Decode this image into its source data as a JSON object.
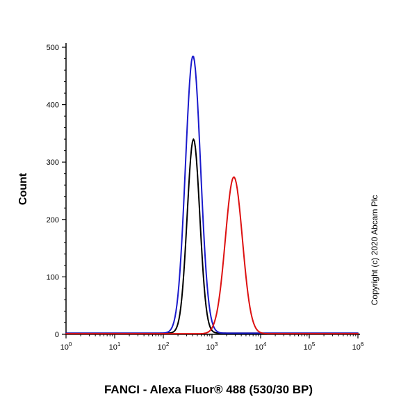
{
  "page": {
    "background": "#ffffff"
  },
  "title": "FANCI - Alexa Fluor® 488 (530/30 BP)",
  "copyright": "Copyright (c) 2020 Abcam Plc",
  "chart_data": {
    "type": "line",
    "subtype": "flow-cytometry-histogram",
    "title": "FANCI - Alexa Fluor® 488 (530/30 BP)",
    "xlabel": "",
    "ylabel": "Count",
    "x_scale": "log10",
    "xlim": [
      1,
      1000000
    ],
    "ylim": [
      0,
      500
    ],
    "grid": false,
    "legend": "none",
    "y_ticks": [
      0,
      100,
      200,
      300,
      400,
      500
    ],
    "y_minor_tick_step": 20,
    "x_tick_base": "10",
    "x_tick_exponents": [
      0,
      1,
      2,
      3,
      4,
      5,
      6
    ],
    "series": [
      {
        "name": "control-black",
        "color": "#000000",
        "peak_count": 338,
        "peak_x": 420,
        "peak_log10_x": 2.62,
        "sigma_log10": 0.13,
        "baseline_count": 2
      },
      {
        "name": "control-blue",
        "color": "#1a1acc",
        "peak_count": 483,
        "peak_x": 420,
        "peak_log10_x": 2.61,
        "sigma_log10": 0.155,
        "baseline_count": 2
      },
      {
        "name": "fanci-alexa-fluor-488-red",
        "color": "#dd1111",
        "peak_count": 273,
        "peak_x": 2800,
        "peak_log10_x": 3.45,
        "sigma_log10": 0.175,
        "baseline_count": 1
      }
    ]
  }
}
